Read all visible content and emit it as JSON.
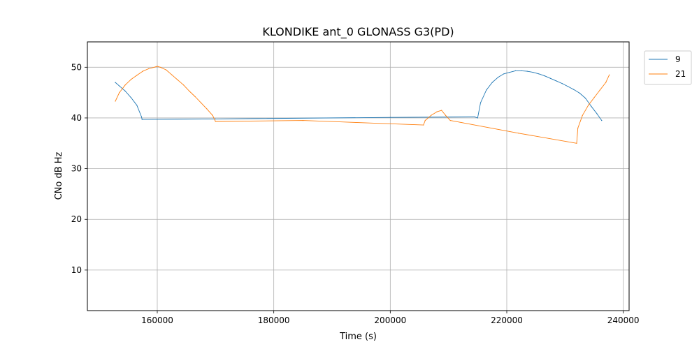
{
  "chart_data": {
    "type": "line",
    "title": "KLONDIKE ant_0 GLONASS G3(PD)",
    "xlabel": "Time (s)",
    "ylabel": "CNo dB Hz",
    "xlim": [
      148000,
      241000
    ],
    "ylim": [
      2,
      55
    ],
    "x_ticks": [
      160000,
      180000,
      200000,
      220000,
      240000
    ],
    "x_tick_labels": [
      "160000",
      "180000",
      "200000",
      "220000",
      "240000"
    ],
    "y_ticks": [
      10,
      20,
      30,
      40,
      50
    ],
    "y_tick_labels": [
      "10",
      "20",
      "30",
      "40",
      "50"
    ],
    "grid": true,
    "legend_placement": "outside-top-right",
    "series": [
      {
        "name": "9",
        "color": "#1f77b4",
        "x": [
          152800,
          153500,
          154500,
          155500,
          156500,
          157300,
          157400,
          170000,
          200000,
          214500,
          215000,
          215500,
          216500,
          217500,
          218500,
          219500,
          220500,
          221500,
          222500,
          223500,
          224500,
          225500,
          226500,
          227500,
          228500,
          229500,
          230500,
          231500,
          232500,
          233500,
          234500,
          235500,
          236300
        ],
        "y": [
          47,
          46.3,
          45.3,
          44,
          42.5,
          40.2,
          39.7,
          39.8,
          40.1,
          40.2,
          40,
          43,
          45.5,
          47,
          48,
          48.7,
          49,
          49.3,
          49.3,
          49.2,
          49,
          48.7,
          48.3,
          47.8,
          47.3,
          46.8,
          46.2,
          45.6,
          44.9,
          43.9,
          42.3,
          40.8,
          39.5
        ]
      },
      {
        "name": "21",
        "color": "#ff7f0e",
        "x": [
          152800,
          153500,
          154500,
          155500,
          156500,
          157500,
          158500,
          159500,
          160000,
          160500,
          161500,
          162500,
          163500,
          164500,
          165500,
          166500,
          167500,
          168500,
          169500,
          170000,
          185000,
          205700,
          206000,
          207000,
          208000,
          208800,
          209500,
          210300,
          222000,
          232000,
          232200,
          233000,
          234000,
          235000,
          236000,
          237000,
          237600
        ],
        "y": [
          43.3,
          45,
          46.5,
          47.6,
          48.4,
          49.2,
          49.7,
          50,
          50.2,
          50,
          49.5,
          48.5,
          47.5,
          46.5,
          45.3,
          44.2,
          43,
          41.8,
          40.5,
          39.3,
          39.5,
          38.6,
          39.5,
          40.5,
          41.2,
          41.5,
          40.5,
          39.5,
          37,
          35,
          38,
          40.5,
          42.5,
          44,
          45.5,
          47,
          48.5
        ]
      }
    ]
  }
}
